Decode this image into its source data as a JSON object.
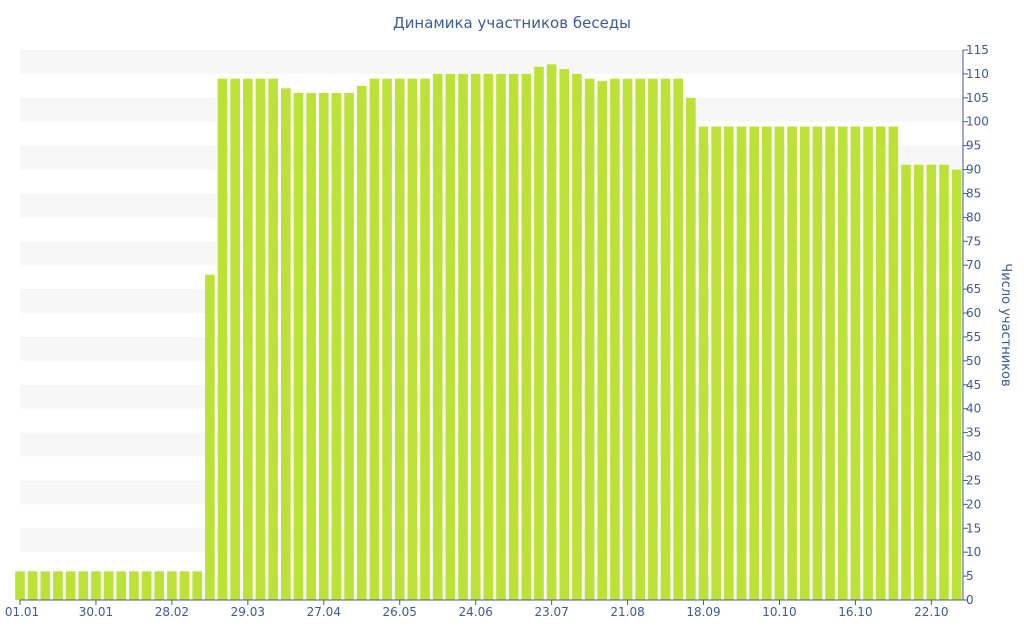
{
  "chart_data": {
    "type": "bar",
    "title": "Динамика участников беседы",
    "xlabel": "",
    "ylabel": "Число участников",
    "ylim": [
      0,
      115
    ],
    "ytick_step": 5,
    "grid": "alternating horizontal bands",
    "legend": "none",
    "x_tick_labels": [
      {
        "label": "01.01",
        "index": 0
      },
      {
        "label": "30.01",
        "index": 6
      },
      {
        "label": "28.02",
        "index": 12
      },
      {
        "label": "29.03",
        "index": 18
      },
      {
        "label": "27.04",
        "index": 24
      },
      {
        "label": "26.05",
        "index": 30
      },
      {
        "label": "24.06",
        "index": 36
      },
      {
        "label": "23.07",
        "index": 42
      },
      {
        "label": "21.08",
        "index": 48
      },
      {
        "label": "18.09",
        "index": 54
      },
      {
        "label": "10.10",
        "index": 60
      },
      {
        "label": "16.10",
        "index": 66
      },
      {
        "label": "22.10",
        "index": 72
      }
    ],
    "values": [
      6,
      6,
      6,
      6,
      6,
      6,
      6,
      6,
      6,
      6,
      6,
      6,
      6,
      6,
      6,
      68,
      109,
      109,
      109,
      109,
      109,
      107,
      106,
      106,
      106,
      106,
      106,
      107.5,
      109,
      109,
      109,
      109,
      109,
      110,
      110,
      110,
      110,
      110,
      110,
      110,
      110,
      111.5,
      112,
      111,
      110,
      109,
      108.5,
      109,
      109,
      109,
      109,
      109,
      109,
      105,
      99,
      99,
      99,
      99,
      99,
      99,
      99,
      99,
      99,
      99,
      99,
      99,
      99,
      99,
      99,
      99,
      91,
      91,
      91,
      91,
      90
    ]
  },
  "colors": {
    "bar": "#bde237",
    "band": "#f7f7f7",
    "text": "#3d5a99",
    "axis": "#4a5a8a"
  }
}
